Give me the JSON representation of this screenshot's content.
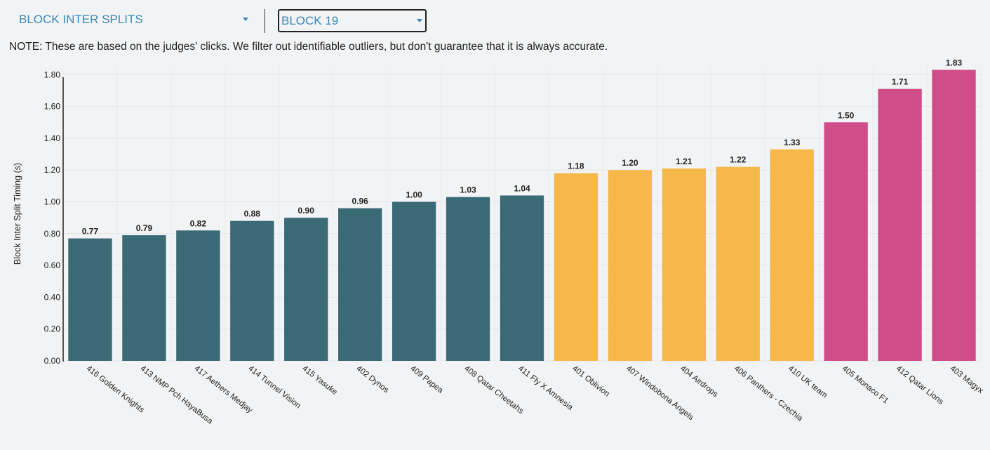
{
  "toolbar": {
    "metric_select": {
      "value": "BLOCK INTER SPLITS",
      "icon": "chevron-down-icon"
    },
    "block_select": {
      "value": "BLOCK 19",
      "icon": "chevron-down-icon"
    }
  },
  "note": "NOTE: These are based on the judges' clicks. We filter out identifiable outliers, but don't guarantee that it is always accurate.",
  "colors": {
    "low": "#3b6a77",
    "mid": "#f7b84b",
    "high": "#cf4d88",
    "accent": "#3a87b8"
  },
  "chart_data": {
    "type": "bar",
    "title": "",
    "xlabel": "",
    "ylabel": "Block Inter Split Timing (s)",
    "ylim": [
      0,
      1.85
    ],
    "yticks": [
      "0.00",
      "0.20",
      "0.40",
      "0.60",
      "0.80",
      "1.00",
      "1.20",
      "1.40",
      "1.60",
      "1.80"
    ],
    "grid": true,
    "categories": [
      "416 Golden Knights",
      "413 NMP Pch HayaBusa",
      "417 Aethers Medjay",
      "414 Tunnel Vision",
      "415 Yasuke",
      "402 Dynos",
      "409 Papea",
      "408 Qatar Cheetahs",
      "411 Fly X Amnesia",
      "401 Oblivion",
      "407 Windobona Angels",
      "404 Airdrops",
      "406 Panthers - Czechia",
      "410 UK team",
      "405 Monaco F1",
      "412 Qatar Lions",
      "403 Magyx"
    ],
    "values": [
      0.77,
      0.79,
      0.82,
      0.88,
      0.9,
      0.96,
      1.0,
      1.03,
      1.04,
      1.18,
      1.2,
      1.21,
      1.22,
      1.33,
      1.5,
      1.71,
      1.83
    ],
    "value_labels": [
      "0.77",
      "0.79",
      "0.82",
      "0.88",
      "0.90",
      "0.96",
      "1.00",
      "1.03",
      "1.04",
      "1.18",
      "1.20",
      "1.21",
      "1.22",
      "1.33",
      "1.50",
      "1.71",
      "1.83"
    ],
    "color_groups": [
      "low",
      "low",
      "low",
      "low",
      "low",
      "low",
      "low",
      "low",
      "low",
      "mid",
      "mid",
      "mid",
      "mid",
      "mid",
      "high",
      "high",
      "high"
    ]
  }
}
